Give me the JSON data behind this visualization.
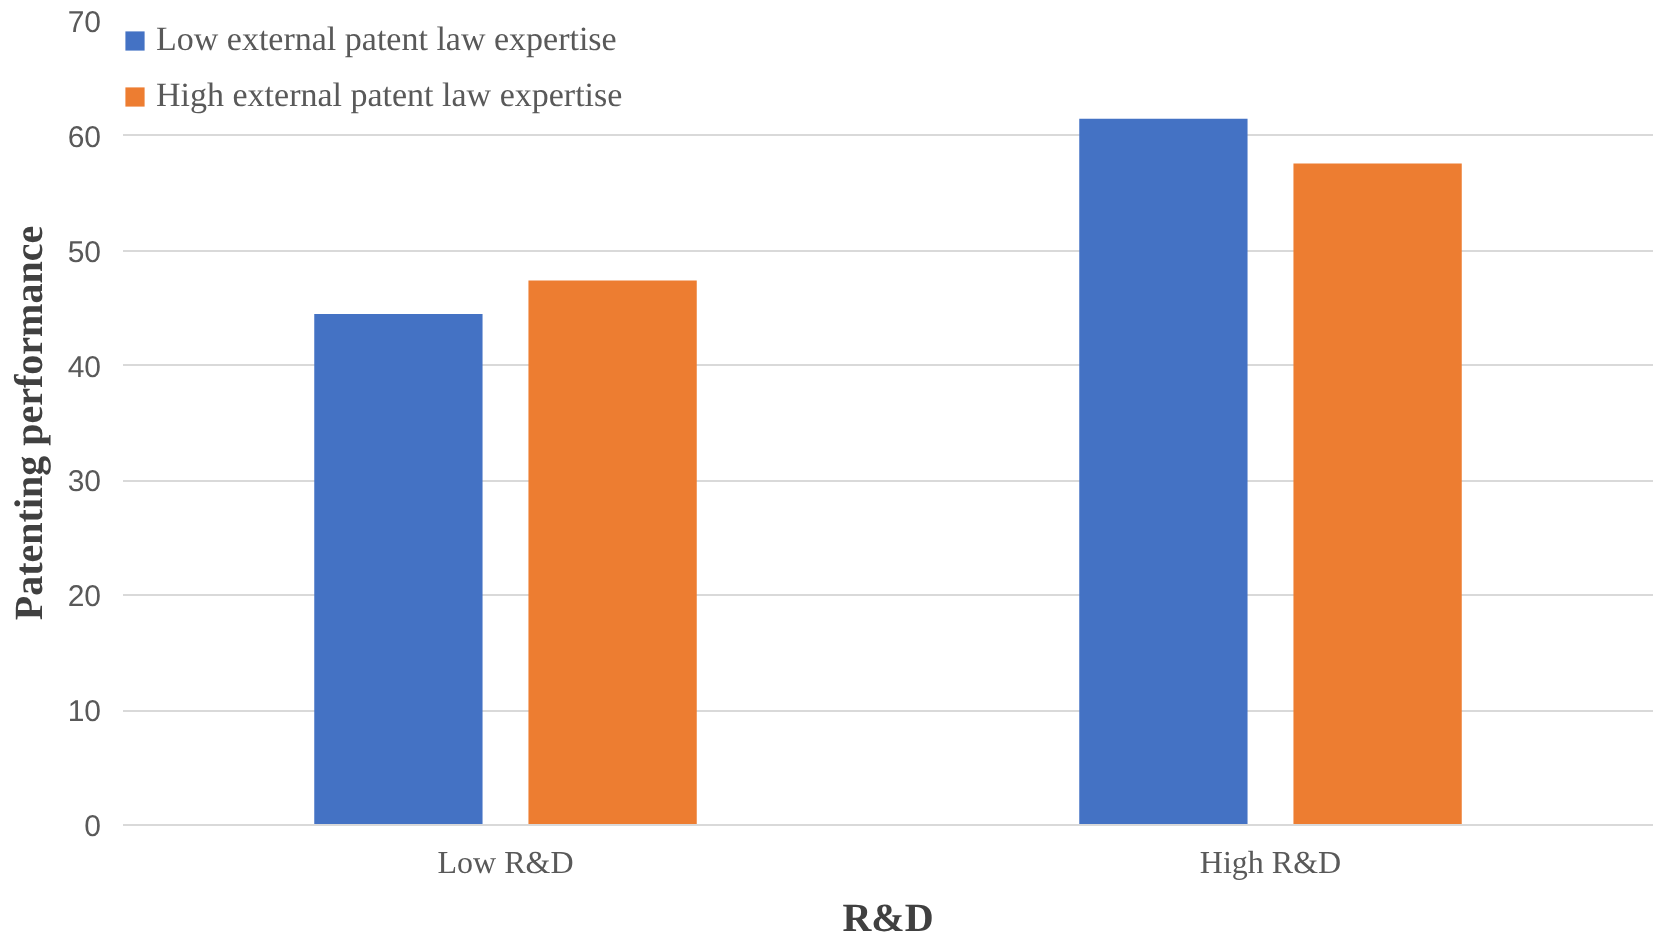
{
  "chart_data": {
    "type": "bar",
    "xlabel": "R&D",
    "ylabel": "Patenting performance",
    "categories": [
      "Low R&D",
      "High R&D"
    ],
    "series": [
      {
        "name": "Low external patent law expertise",
        "color": "#4472c4",
        "values": [
          44.5,
          61.5
        ]
      },
      {
        "name": "High external patent law expertise",
        "color": "#ed7d31",
        "values": [
          47.4,
          57.6
        ]
      }
    ],
    "ylim": [
      0,
      70
    ],
    "yticks": [
      0,
      10,
      20,
      30,
      40,
      50,
      60,
      70
    ],
    "grid": "y",
    "legend": "top left"
  }
}
